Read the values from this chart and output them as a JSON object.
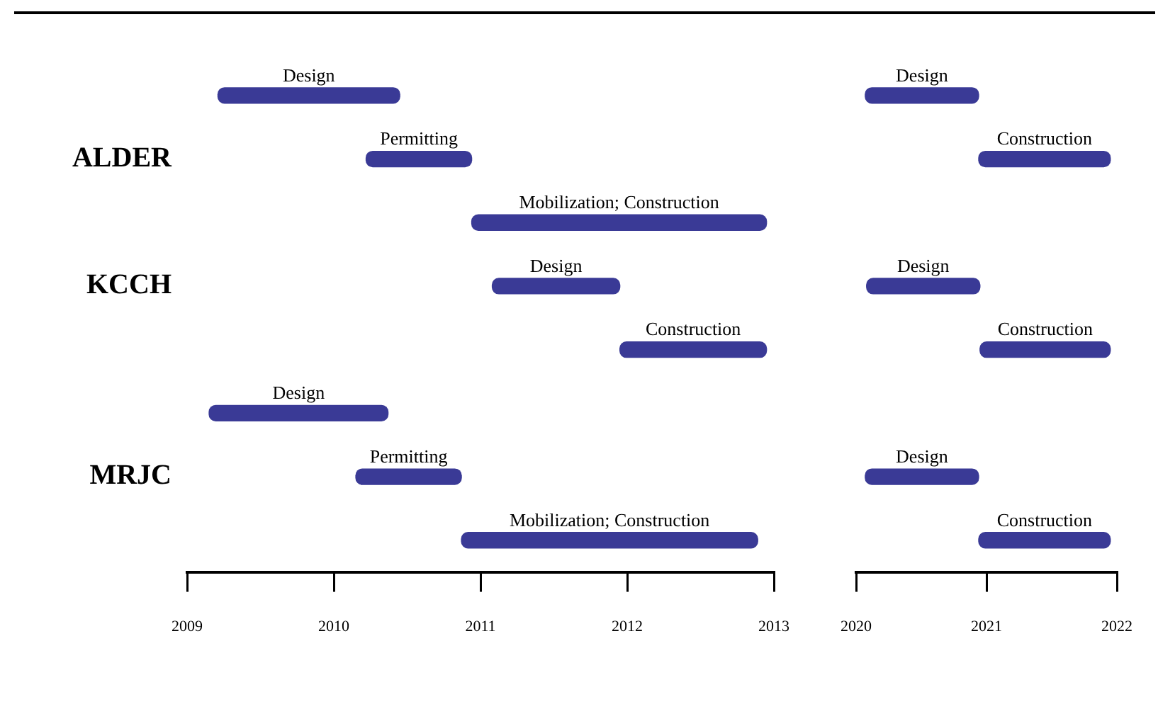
{
  "chart_data": [
    {
      "type": "bar",
      "orientation": "horizontal",
      "categories": [
        null,
        "ALDER",
        null,
        "KCCH",
        null,
        null,
        "MRJC",
        null
      ],
      "base": [
        2009.21,
        2010.22,
        2010.94,
        2011.08,
        2011.95,
        2009.15,
        2010.15,
        2010.87
      ],
      "values": [
        1.24,
        0.72,
        2.01,
        0.87,
        1.0,
        1.22,
        0.72,
        2.02
      ],
      "value_labels": [
        "Design",
        "Permitting",
        "Mobilization; Construction",
        "Design",
        "Construction",
        "Design",
        "Permitting",
        "Mobilization; Construction"
      ],
      "color": "#3a3a96",
      "xlim": [
        2009,
        2013
      ],
      "xticks": [
        2009,
        2010,
        2011,
        2012,
        2013
      ],
      "grid": false,
      "legend": false
    },
    {
      "type": "bar",
      "orientation": "horizontal",
      "categories": [
        null,
        null,
        null,
        null,
        null,
        null,
        null,
        null
      ],
      "base": [
        2020.07,
        2020.94,
        null,
        2020.08,
        2020.95,
        null,
        2020.07,
        2020.94
      ],
      "values": [
        0.87,
        1.01,
        null,
        0.87,
        1.0,
        null,
        0.87,
        1.01
      ],
      "value_labels": [
        "Design",
        "Construction",
        null,
        "Design",
        "Construction",
        null,
        "Design",
        "Construction"
      ],
      "color": "#3a3a96",
      "xlim": [
        2020,
        2022
      ],
      "xticks": [
        2020,
        2021,
        2022
      ],
      "grid": false,
      "legend": false,
      "tick_labels": "x"
    }
  ]
}
